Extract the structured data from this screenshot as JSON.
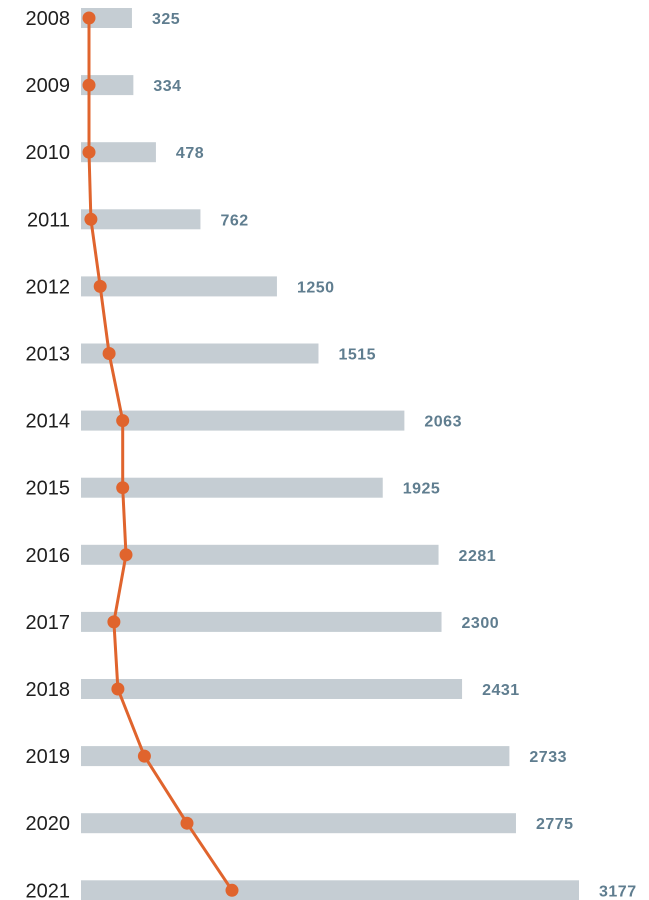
{
  "chart_data": {
    "type": "bar",
    "orientation": "horizontal",
    "categories": [
      "2008",
      "2009",
      "2010",
      "2011",
      "2012",
      "2013",
      "2014",
      "2015",
      "2016",
      "2017",
      "2018",
      "2019",
      "2020",
      "2021"
    ],
    "values": [
      325,
      334,
      478,
      762,
      1250,
      1515,
      2063,
      1925,
      2281,
      2300,
      2431,
      2733,
      2775,
      3177
    ],
    "value_labels": [
      "325",
      "334",
      "478",
      "762",
      "1250",
      "1515",
      "2063",
      "1925",
      "2281",
      "2300",
      "2431",
      "2733",
      "2775",
      "3177"
    ],
    "overlay_line": {
      "type": "line",
      "values": [
        0,
        0,
        0,
        12,
        70,
        125,
        210,
        210,
        230,
        155,
        180,
        345,
        610,
        890
      ]
    },
    "title": "",
    "xlabel": "",
    "ylabel": "",
    "xlim": [
      0,
      3177
    ],
    "grid": false,
    "legend": "none",
    "colors": {
      "bar": "#c5cdd3",
      "line": "#e0642d",
      "value_text": "#5f7d8f",
      "year_text": "#1f1f1f"
    }
  }
}
